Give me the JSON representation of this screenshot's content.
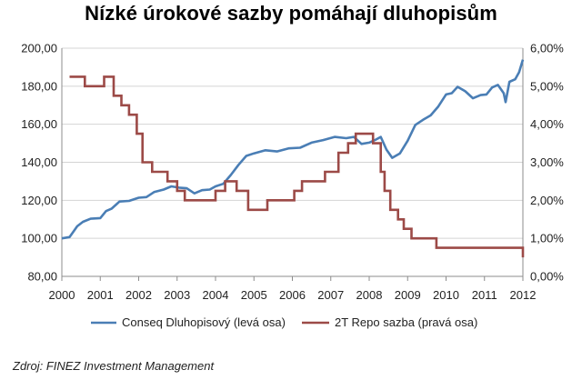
{
  "chart_data": {
    "type": "line",
    "title": "Nízké úrokové sazby pomáhají dluhopisům",
    "x_ticks": [
      "2000",
      "2001",
      "2002",
      "2003",
      "2004",
      "2005",
      "2006",
      "2007",
      "2008",
      "2009",
      "2010",
      "2011",
      "2012"
    ],
    "y_left": {
      "ticks": [
        "80,00",
        "100,00",
        "120,00",
        "140,00",
        "160,00",
        "180,00",
        "200,00"
      ],
      "ylim": [
        80,
        200
      ]
    },
    "y_right": {
      "ticks": [
        "0,00%",
        "1,00%",
        "2,00%",
        "3,00%",
        "4,00%",
        "5,00%",
        "6,00%"
      ],
      "ylim": [
        0,
        6
      ]
    },
    "grid": "horizontal",
    "legend_position": "bottom",
    "series": [
      {
        "name": "Conseq Dluhopisový (levá osa)",
        "axis": "left",
        "color": "#4a7eb5",
        "points": [
          [
            2000.0,
            100
          ],
          [
            2000.2,
            101
          ],
          [
            2000.4,
            106
          ],
          [
            2000.55,
            109
          ],
          [
            2000.75,
            110
          ],
          [
            2001.0,
            111
          ],
          [
            2001.15,
            114
          ],
          [
            2001.3,
            116
          ],
          [
            2001.5,
            119
          ],
          [
            2001.75,
            120
          ],
          [
            2002.0,
            121
          ],
          [
            2002.2,
            122
          ],
          [
            2002.4,
            124
          ],
          [
            2002.65,
            126
          ],
          [
            2002.85,
            127
          ],
          [
            2003.05,
            127
          ],
          [
            2003.25,
            126
          ],
          [
            2003.45,
            124
          ],
          [
            2003.65,
            125
          ],
          [
            2003.85,
            126
          ],
          [
            2004.0,
            127
          ],
          [
            2004.2,
            129
          ],
          [
            2004.4,
            133
          ],
          [
            2004.6,
            139
          ],
          [
            2004.8,
            143
          ],
          [
            2005.0,
            145
          ],
          [
            2005.3,
            146
          ],
          [
            2005.6,
            146
          ],
          [
            2005.9,
            147
          ],
          [
            2006.2,
            148
          ],
          [
            2006.5,
            150
          ],
          [
            2006.8,
            152
          ],
          [
            2007.1,
            153
          ],
          [
            2007.4,
            153
          ],
          [
            2007.6,
            153
          ],
          [
            2007.8,
            150
          ],
          [
            2008.0,
            150
          ],
          [
            2008.15,
            152
          ],
          [
            2008.3,
            153
          ],
          [
            2008.45,
            147
          ],
          [
            2008.6,
            142
          ],
          [
            2008.8,
            145
          ],
          [
            2009.0,
            151
          ],
          [
            2009.2,
            160
          ],
          [
            2009.4,
            162
          ],
          [
            2009.6,
            165
          ],
          [
            2009.8,
            169
          ],
          [
            2010.0,
            176
          ],
          [
            2010.15,
            176
          ],
          [
            2010.3,
            180
          ],
          [
            2010.5,
            177
          ],
          [
            2010.7,
            174
          ],
          [
            2010.9,
            175
          ],
          [
            2011.05,
            176
          ],
          [
            2011.2,
            179
          ],
          [
            2011.35,
            181
          ],
          [
            2011.5,
            176
          ],
          [
            2011.55,
            172
          ],
          [
            2011.65,
            182
          ],
          [
            2011.8,
            184
          ],
          [
            2011.9,
            187
          ],
          [
            2012.0,
            194
          ]
        ]
      },
      {
        "name": "2T Repo sazba (pravá osa)",
        "axis": "right",
        "color": "#9c4a47",
        "steps": [
          [
            2000.2,
            5.25
          ],
          [
            2000.6,
            5.0
          ],
          [
            2001.1,
            5.25
          ],
          [
            2001.35,
            4.75
          ],
          [
            2001.55,
            4.5
          ],
          [
            2001.75,
            4.25
          ],
          [
            2001.95,
            3.75
          ],
          [
            2002.1,
            3.0
          ],
          [
            2002.35,
            2.75
          ],
          [
            2002.75,
            2.5
          ],
          [
            2003.0,
            2.25
          ],
          [
            2003.2,
            2.0
          ],
          [
            2004.0,
            2.25
          ],
          [
            2004.25,
            2.5
          ],
          [
            2004.55,
            2.25
          ],
          [
            2004.85,
            1.75
          ],
          [
            2005.35,
            2.0
          ],
          [
            2006.05,
            2.25
          ],
          [
            2006.25,
            2.5
          ],
          [
            2006.85,
            2.75
          ],
          [
            2007.2,
            3.25
          ],
          [
            2007.45,
            3.5
          ],
          [
            2007.65,
            3.75
          ],
          [
            2008.1,
            3.5
          ],
          [
            2008.3,
            2.75
          ],
          [
            2008.4,
            2.25
          ],
          [
            2008.55,
            1.75
          ],
          [
            2008.75,
            1.5
          ],
          [
            2008.9,
            1.25
          ],
          [
            2009.1,
            1.0
          ],
          [
            2009.45,
            1.0
          ],
          [
            2009.75,
            0.75
          ],
          [
            2011.75,
            0.75
          ],
          [
            2012.0,
            0.5
          ]
        ],
        "end": 2012.0
      }
    ]
  },
  "source": "Zdroj: FINEZ Investment Management"
}
